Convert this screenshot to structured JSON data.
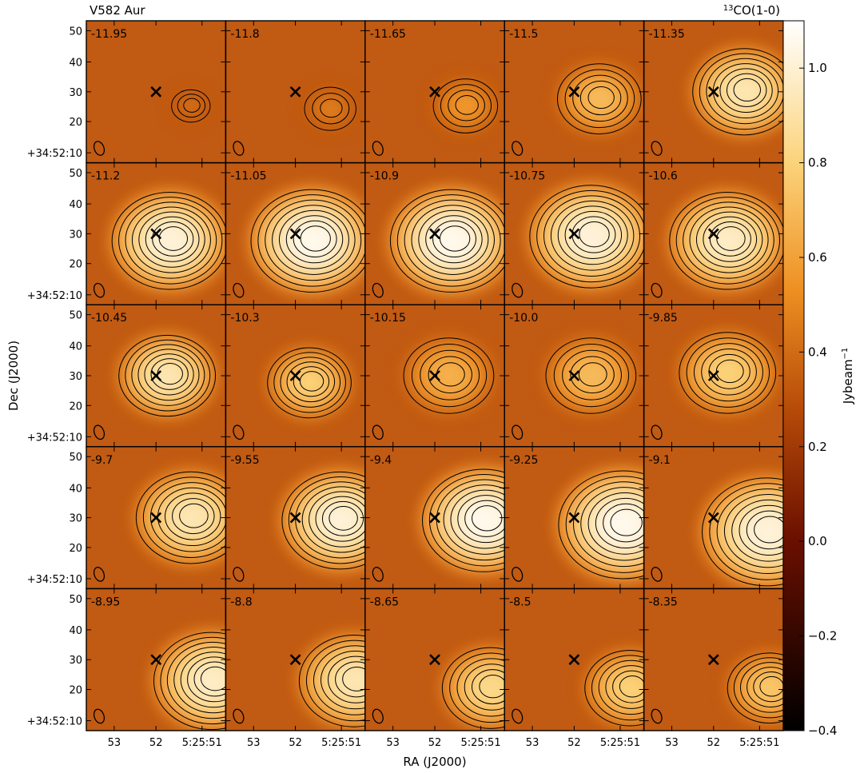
{
  "chart_data": {
    "type": "heatmap",
    "title_left": "V582 Aur",
    "title_right": "CO(1-0)",
    "title_right_superscript": "13",
    "xlabel": "RA (J2000)",
    "ylabel": "Dec (J2000)",
    "y_ticks": [
      "50",
      "40",
      "30",
      "20",
      "+34:52:10"
    ],
    "x_ticks": [
      "53",
      "52",
      "5:25:51"
    ],
    "colorbar": {
      "label": "Jybeam",
      "label_superscript": "−1",
      "range": [
        -0.4,
        1.1
      ],
      "ticks": [
        "1.0",
        "0.8",
        "0.6",
        "0.4",
        "0.2",
        "0.0",
        "−0.2",
        "−0.4"
      ],
      "tick_values": [
        1.0,
        0.8,
        0.6,
        0.4,
        0.2,
        0.0,
        -0.2,
        -0.4
      ]
    },
    "grid": false,
    "rows": 5,
    "cols": 5,
    "source_marker": "x",
    "beam_marker": "ellipse",
    "velocities": [
      "-11.95",
      "-11.8",
      "-11.65",
      "-11.5",
      "-11.35",
      "-11.2",
      "-11.05",
      "-10.9",
      "-10.75",
      "-10.6",
      "-10.45",
      "-10.3",
      "-10.15",
      "-10.0",
      "-9.85",
      "-9.7",
      "-9.55",
      "-9.4",
      "-9.25",
      "-9.1",
      "-8.95",
      "-8.8",
      "-8.65",
      "-8.5",
      "-8.35"
    ],
    "peak_intensity": [
      0.35,
      0.4,
      0.5,
      0.65,
      0.9,
      1.0,
      1.05,
      1.05,
      1.0,
      0.95,
      0.9,
      0.75,
      0.6,
      0.65,
      0.75,
      0.9,
      1.0,
      1.05,
      1.05,
      1.0,
      0.95,
      0.9,
      0.8,
      0.75,
      0.7
    ]
  }
}
